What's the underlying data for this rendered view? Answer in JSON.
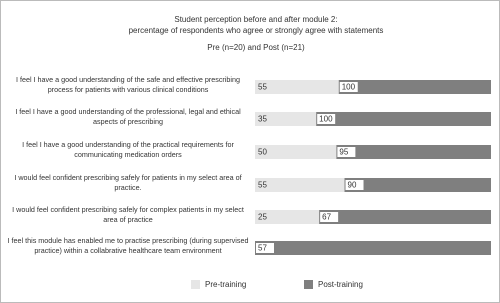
{
  "chart_data": {
    "type": "stacked_bar_100",
    "title": "Student perception before and after module 2:",
    "subtitle": "percentage of respondents who agree or strongly agree with statements",
    "annotation": "Pre (n=20) and Post (n=21)",
    "categories": [
      "I feel I have a good understanding of the safe and effective prescribing process for patients with various clinical conditions",
      "I feel I have a good understanding of the professional, legal and ethical aspects of prescribing",
      "I feel I have a good understanding of the practical requirements for communicating medication orders",
      "I would feel confident prescribing safely for patients in my select area of practice.",
      "I would feel confident prescribing safely for complex patients in my select area of practice",
      "I feel this module has enabled me to practise prescribing (during supervised practice) within a collabrative healthcare team environment"
    ],
    "series": [
      {
        "name": "Pre-training",
        "color": "#e6e6e6",
        "values": [
          55,
          35,
          50,
          55,
          25,
          0
        ]
      },
      {
        "name": "Post-training",
        "color": "#7f7f7f",
        "values": [
          100,
          100,
          95,
          90,
          67,
          57
        ]
      }
    ],
    "legend": "bottom"
  }
}
